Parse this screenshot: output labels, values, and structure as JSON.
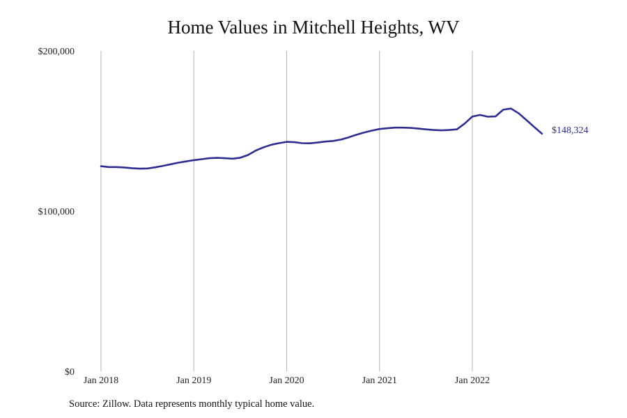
{
  "chart_data": {
    "type": "line",
    "title": "Home Values in Mitchell Heights, WV",
    "xlabel": "",
    "ylabel": "",
    "ylim": [
      0,
      200000
    ],
    "y_ticks": [
      {
        "value": 0,
        "label": "$0"
      },
      {
        "value": 100000,
        "label": "$100,000"
      },
      {
        "value": 200000,
        "label": "$200,000"
      }
    ],
    "x_ticks": [
      {
        "value": "2018-01",
        "label": "Jan 2018"
      },
      {
        "value": "2019-01",
        "label": "Jan 2019"
      },
      {
        "value": "2020-01",
        "label": "Jan 2020"
      },
      {
        "value": "2021-01",
        "label": "Jan 2021"
      },
      {
        "value": "2022-01",
        "label": "Jan 2022"
      }
    ],
    "grid": "vertical",
    "line_color": "#2e2d8f",
    "end_label": "$148,324",
    "series": [
      {
        "x": [
          "2018-01",
          "2018-02",
          "2018-03",
          "2018-04",
          "2018-05",
          "2018-06",
          "2018-07",
          "2018-08",
          "2018-09",
          "2018-10",
          "2018-11",
          "2018-12",
          "2019-01",
          "2019-02",
          "2019-03",
          "2019-04",
          "2019-05",
          "2019-06",
          "2019-07",
          "2019-08",
          "2019-09",
          "2019-10",
          "2019-11",
          "2019-12",
          "2020-01",
          "2020-02",
          "2020-03",
          "2020-04",
          "2020-05",
          "2020-06",
          "2020-07",
          "2020-08",
          "2020-09",
          "2020-10",
          "2020-11",
          "2020-12",
          "2021-01",
          "2021-02",
          "2021-03",
          "2021-04",
          "2021-05",
          "2021-06",
          "2021-07",
          "2021-08",
          "2021-09",
          "2021-10",
          "2021-11",
          "2021-12",
          "2022-01",
          "2022-02",
          "2022-03",
          "2022-04",
          "2022-05",
          "2022-06",
          "2022-07",
          "2022-08",
          "2022-09",
          "2022-10"
        ],
        "values": [
          128000,
          127500,
          127500,
          127200,
          126800,
          126500,
          126600,
          127300,
          128200,
          129200,
          130200,
          131000,
          131800,
          132400,
          133000,
          133200,
          133000,
          132700,
          133300,
          135000,
          137800,
          139800,
          141400,
          142400,
          143200,
          143000,
          142400,
          142300,
          142800,
          143400,
          143800,
          144600,
          146000,
          147600,
          149000,
          150200,
          151200,
          151700,
          152100,
          152100,
          151900,
          151500,
          151000,
          150600,
          150400,
          150600,
          151000,
          154600,
          159000,
          160000,
          158900,
          159100,
          163300,
          164000,
          161000,
          156800,
          152500,
          148324
        ]
      }
    ]
  },
  "source_text": "Source: Zillow. Data represents monthly typical home value."
}
